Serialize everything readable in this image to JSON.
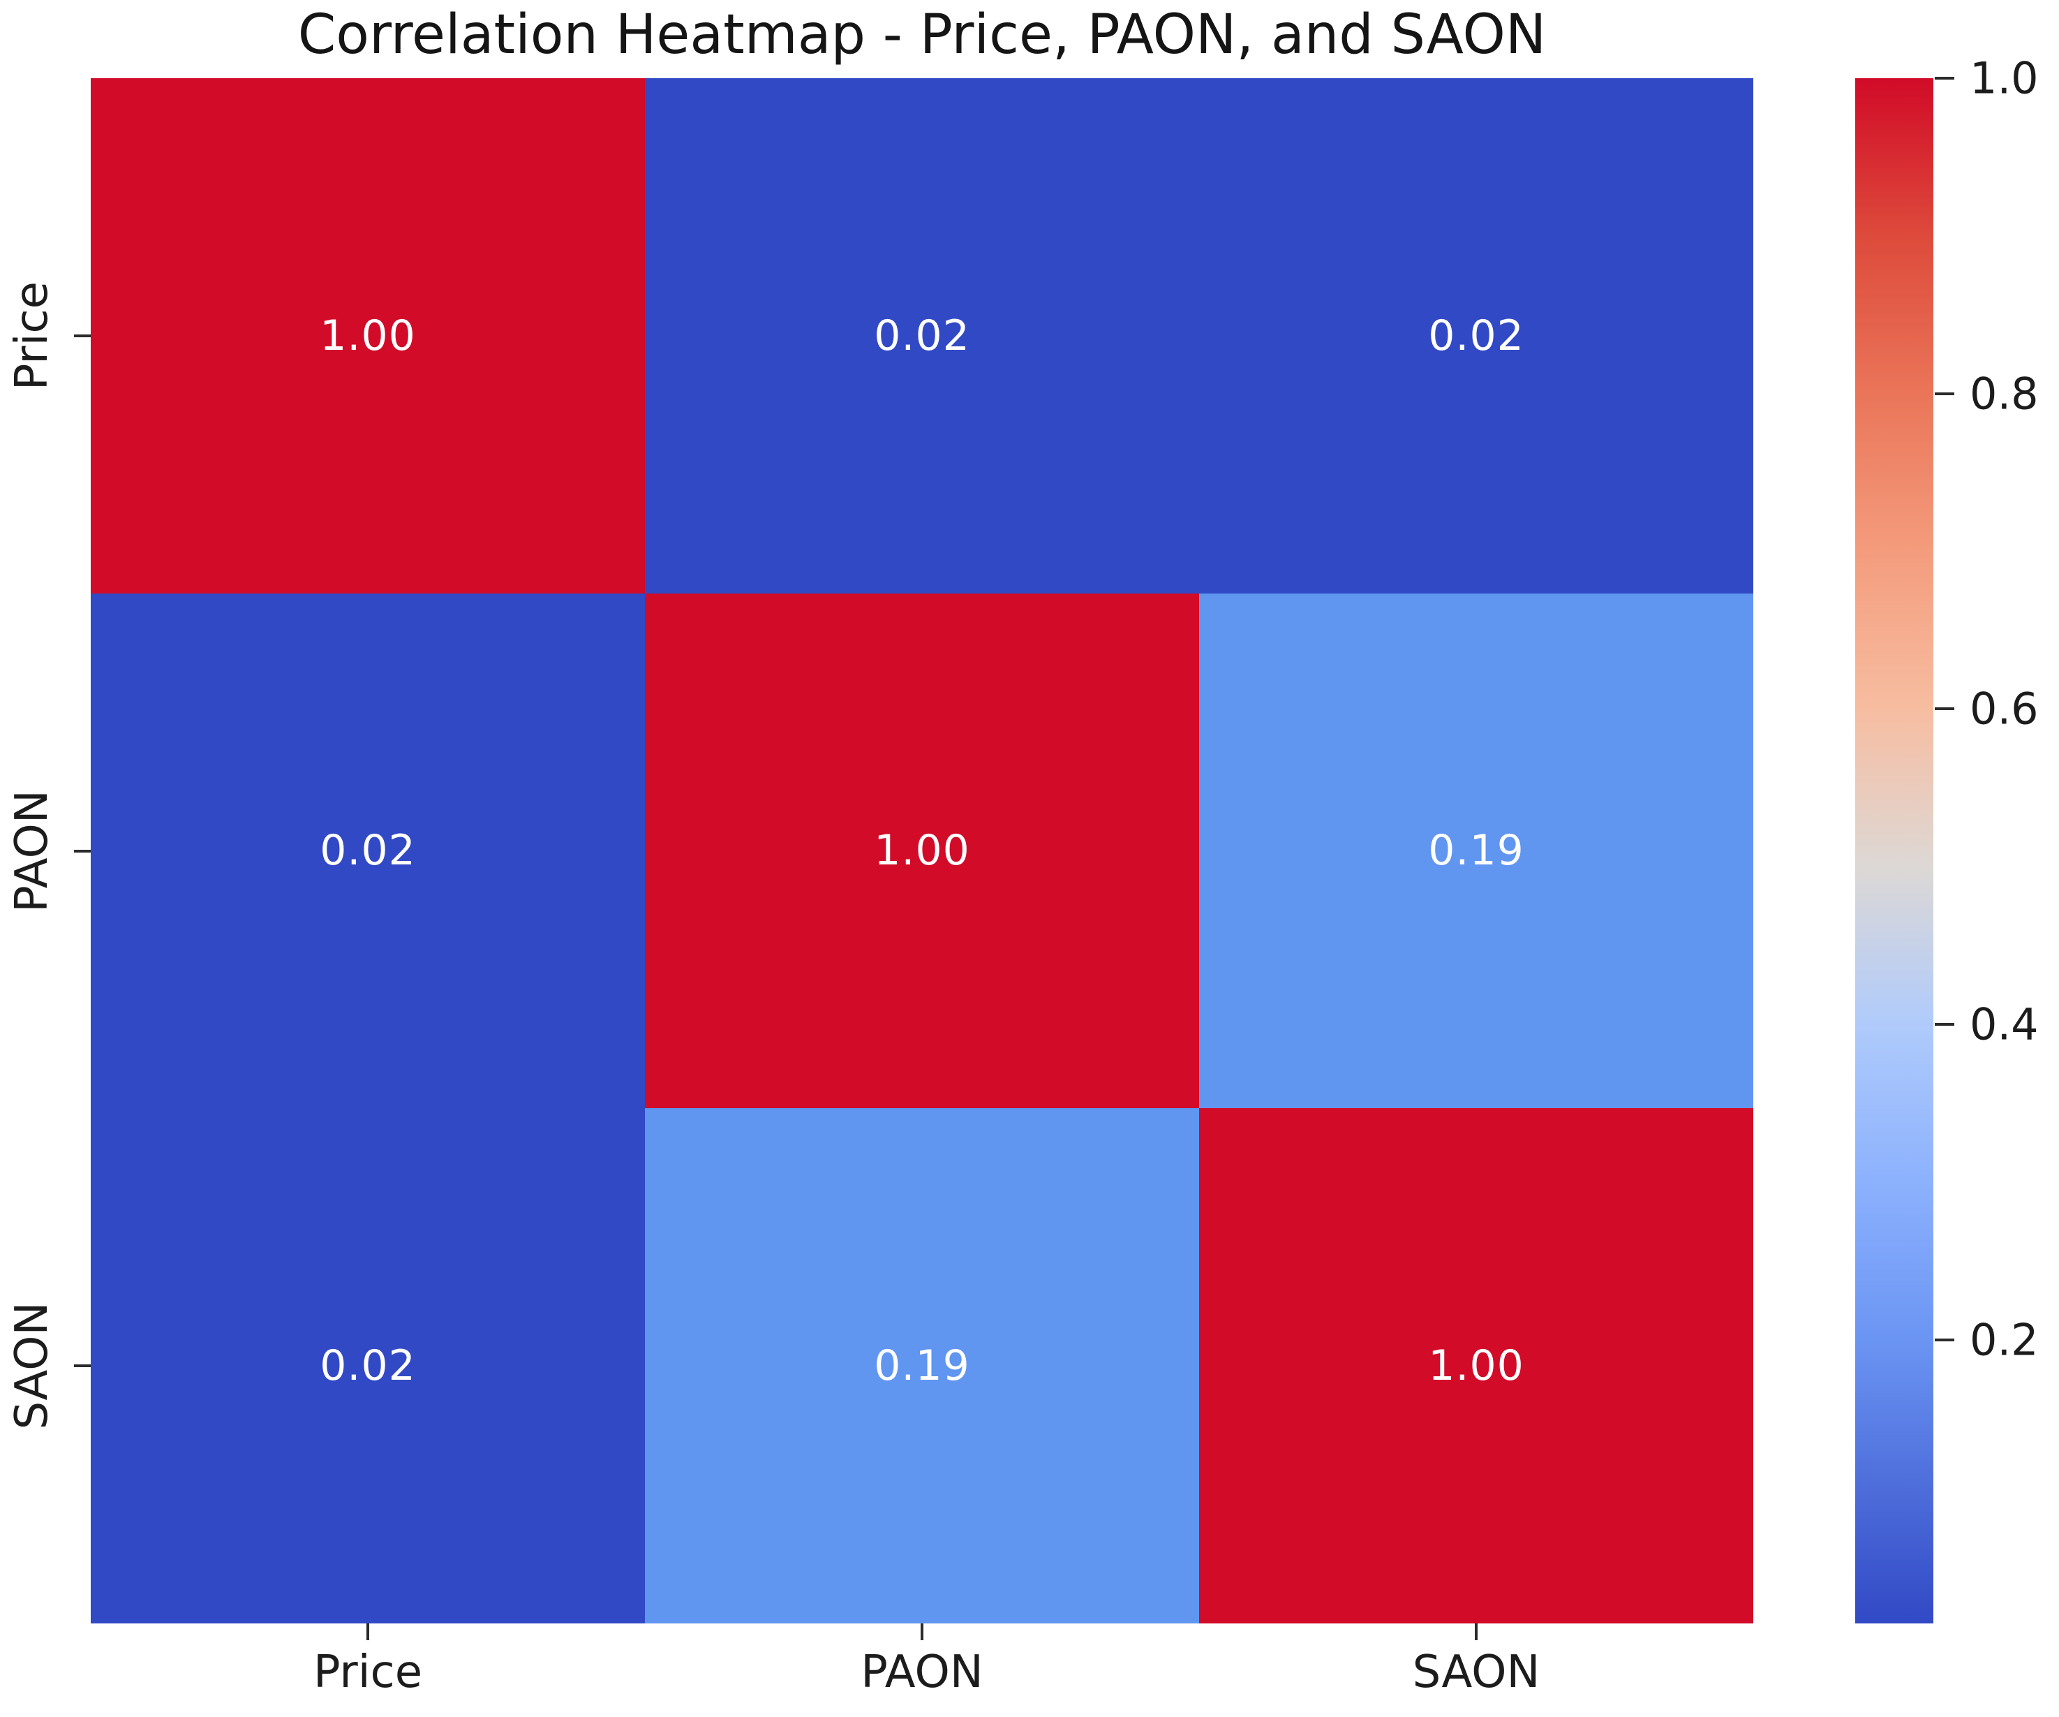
{
  "chart_data": {
    "type": "heatmap",
    "title": "Correlation Heatmap - Price, PAON, and SAON",
    "x_labels": [
      "Price",
      "PAON",
      "SAON"
    ],
    "y_labels": [
      "Price",
      "PAON",
      "SAON"
    ],
    "matrix": [
      [
        1.0,
        0.02,
        0.02
      ],
      [
        0.02,
        1.0,
        0.19
      ],
      [
        0.02,
        0.19,
        1.0
      ]
    ],
    "cells": [
      {
        "row": "Price",
        "col": "Price",
        "label": "1.00",
        "color": "#d10b28"
      },
      {
        "row": "Price",
        "col": "PAON",
        "label": "0.02",
        "color": "#3149c5"
      },
      {
        "row": "Price",
        "col": "SAON",
        "label": "0.02",
        "color": "#3149c5"
      },
      {
        "row": "PAON",
        "col": "Price",
        "label": "0.02",
        "color": "#3149c5"
      },
      {
        "row": "PAON",
        "col": "PAON",
        "label": "1.00",
        "color": "#d10b28"
      },
      {
        "row": "PAON",
        "col": "SAON",
        "label": "0.19",
        "color": "#6095f0"
      },
      {
        "row": "SAON",
        "col": "Price",
        "label": "0.02",
        "color": "#3149c5"
      },
      {
        "row": "SAON",
        "col": "PAON",
        "label": "0.19",
        "color": "#6095f0"
      },
      {
        "row": "SAON",
        "col": "SAON",
        "label": "1.00",
        "color": "#d10b28"
      }
    ],
    "annotation_text_color": "#ffffff",
    "colormap": "coolwarm",
    "vmin": 0.02,
    "vmax": 1.0,
    "colorbar": {
      "tick_labels": [
        "1.0",
        "0.8",
        "0.6",
        "0.4",
        "0.2"
      ],
      "tick_values": [
        1.0,
        0.8,
        0.6,
        0.4,
        0.2
      ],
      "gradient_stops": [
        {
          "pos": 0,
          "color": "#d10b28"
        },
        {
          "pos": 10.2,
          "color": "#dd4a3b"
        },
        {
          "pos": 20.4,
          "color": "#ea7559"
        },
        {
          "pos": 30.6,
          "color": "#f49c7d"
        },
        {
          "pos": 40.8,
          "color": "#f7bda1"
        },
        {
          "pos": 51,
          "color": "#ddd8d5"
        },
        {
          "pos": 61.2,
          "color": "#b0cbfb"
        },
        {
          "pos": 71.4,
          "color": "#8cb1fd"
        },
        {
          "pos": 81.6,
          "color": "#6b95f3"
        },
        {
          "pos": 91.8,
          "color": "#4c6bd9"
        },
        {
          "pos": 100,
          "color": "#3149c5"
        }
      ]
    },
    "legend_position": "right",
    "grid": false
  }
}
